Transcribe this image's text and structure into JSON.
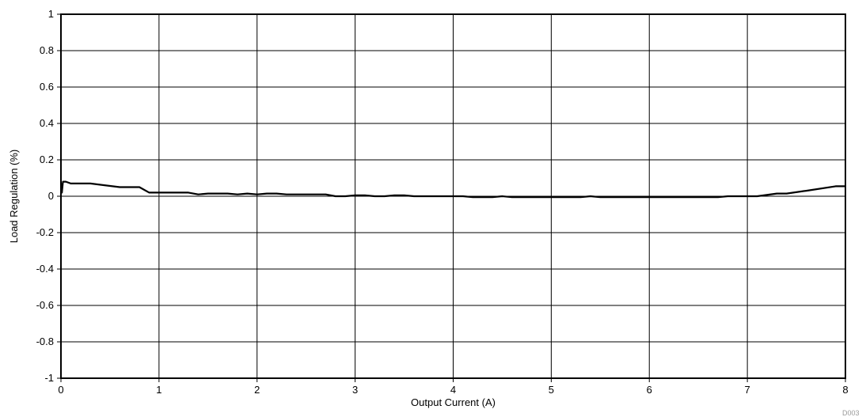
{
  "chart_data": {
    "type": "line",
    "title": "",
    "xlabel": "Output Current (A)",
    "ylabel": "Load Regulation (%)",
    "xlim": [
      0,
      8
    ],
    "ylim": [
      -1,
      1
    ],
    "xticks": [
      0,
      1,
      2,
      3,
      4,
      5,
      6,
      7,
      8
    ],
    "xtick_labels": [
      "0",
      "1",
      "2",
      "3",
      "4",
      "5",
      "6",
      "7",
      "8"
    ],
    "yticks": [
      1,
      0.8,
      0.6,
      0.4,
      0.2,
      0,
      -0.2,
      -0.4,
      -0.6,
      -0.8,
      -1
    ],
    "ytick_labels": [
      "1",
      "0.8",
      "0.6",
      "0.4",
      "0.2",
      "0",
      "-0.2",
      "-0.4",
      "-0.6",
      "-0.8",
      "-1"
    ],
    "grid": true,
    "figure_id": "D003",
    "series": [
      {
        "color": "#000000",
        "x": [
          0,
          0.01,
          0.02,
          0.05,
          0.1,
          0.3,
          0.6,
          0.8,
          0.9,
          1.0,
          1.1,
          1.3,
          1.4,
          1.5,
          1.7,
          1.8,
          1.9,
          2.0,
          2.1,
          2.2,
          2.3,
          2.5,
          2.7,
          2.8,
          2.9,
          3.0,
          3.1,
          3.2,
          3.3,
          3.4,
          3.5,
          3.6,
          3.8,
          4.0,
          4.1,
          4.2,
          4.4,
          4.5,
          4.6,
          4.8,
          5.0,
          5.2,
          5.3,
          5.4,
          5.5,
          5.7,
          6.0,
          6.3,
          6.5,
          6.7,
          6.8,
          7.0,
          7.1,
          7.3,
          7.4,
          7.6,
          7.9,
          8.0
        ],
        "y": [
          0.07,
          0.02,
          0.08,
          0.08,
          0.07,
          0.07,
          0.05,
          0.05,
          0.02,
          0.02,
          0.02,
          0.02,
          0.01,
          0.015,
          0.015,
          0.01,
          0.015,
          0.01,
          0.015,
          0.015,
          0.01,
          0.01,
          0.01,
          0.0,
          0.0,
          0.005,
          0.005,
          0.0,
          0.0,
          0.005,
          0.005,
          0.0,
          0.0,
          0.0,
          0.0,
          -0.005,
          -0.005,
          0.0,
          -0.005,
          -0.005,
          -0.005,
          -0.005,
          -0.005,
          0.0,
          -0.005,
          -0.005,
          -0.005,
          -0.005,
          -0.005,
          -0.005,
          0.0,
          0.0,
          0.0,
          0.015,
          0.015,
          0.03,
          0.055,
          0.055
        ]
      }
    ]
  }
}
